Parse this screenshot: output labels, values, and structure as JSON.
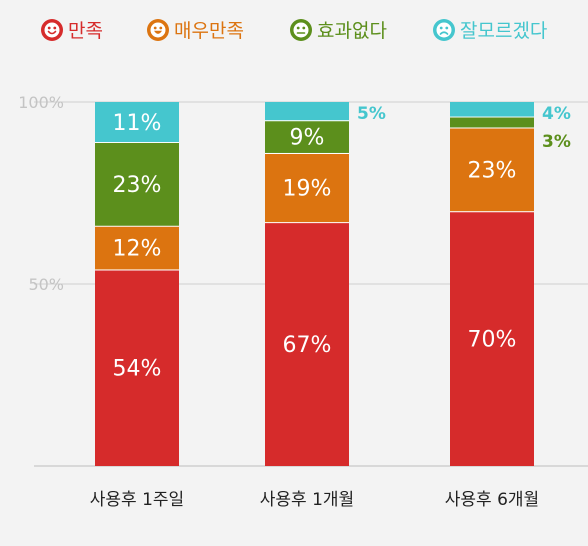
{
  "chart_data": {
    "type": "bar",
    "stacked": true,
    "categories": [
      "사용후 1주일",
      "사용후 1개월",
      "사용후 6개월"
    ],
    "series": [
      {
        "name": "만족",
        "values": [
          54,
          67,
          70
        ],
        "color": "#d62b2b",
        "labels": [
          "54%",
          "67%",
          "70%"
        ],
        "icon": "smiley-face-icon"
      },
      {
        "name": "매우만족",
        "values": [
          12,
          19,
          23
        ],
        "color": "#dc7410",
        "labels": [
          "12%",
          "19%",
          "23%"
        ],
        "icon": "big-smile-face-icon"
      },
      {
        "name": "효과없다",
        "values": [
          23,
          9,
          3
        ],
        "color": "#5c8f1c",
        "labels": [
          "23%",
          "9%",
          "3%"
        ],
        "icon": "neutral-face-icon"
      },
      {
        "name": "잘모르겠다",
        "values": [
          11,
          5,
          4
        ],
        "color": "#45c6ce",
        "labels": [
          "11%",
          "5%",
          "4%"
        ],
        "icon": "confused-face-icon"
      }
    ],
    "yticks": [
      {
        "value": 100,
        "label": "100%"
      },
      {
        "value": 50,
        "label": "50%"
      }
    ],
    "ylim": [
      0,
      100
    ],
    "grid": true,
    "legend_position": "top"
  }
}
